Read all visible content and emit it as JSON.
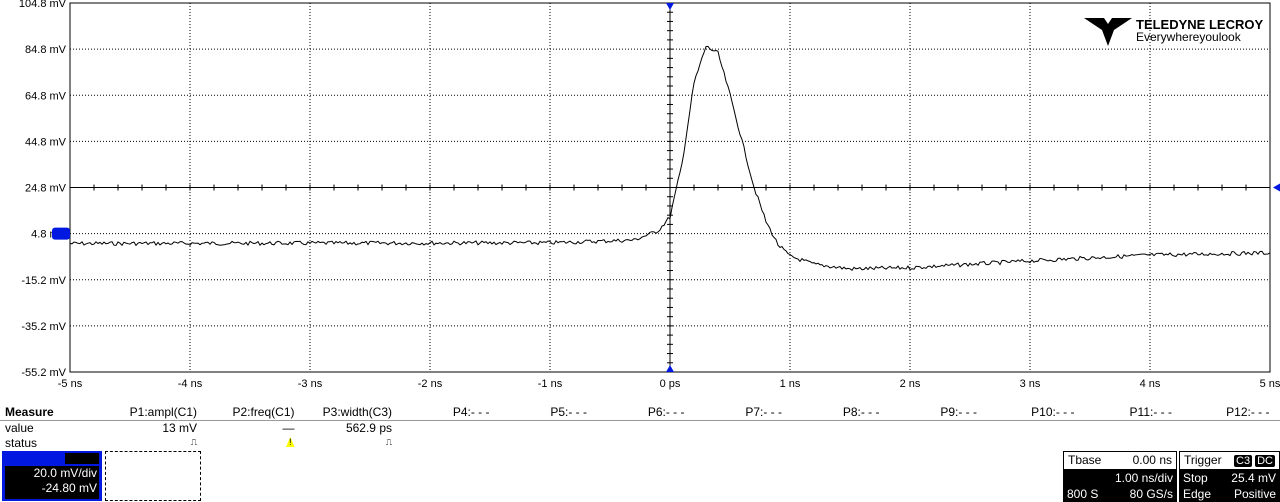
{
  "chart_data": {
    "type": "line",
    "xlabel": "",
    "ylabel": "",
    "xlim": [
      -5,
      5
    ],
    "ylim": [
      -55.2,
      104.8
    ],
    "x_ticks": [
      "-5 ns",
      "-4 ns",
      "-3 ns",
      "-2 ns",
      "-1 ns",
      "0 ps",
      "1 ns",
      "2 ns",
      "3 ns",
      "4 ns",
      "5 ns"
    ],
    "y_ticks": [
      "104.8 mV",
      "84.8 mV",
      "64.8 mV",
      "44.8 mV",
      "24.8 mV",
      "4.8 mV",
      "-15.2 mV",
      "-35.2 mV",
      "-55.2 mV"
    ],
    "grid": true,
    "series": [
      {
        "color": "#000000",
        "x": [
          -5,
          -1,
          -0.3,
          -0.1,
          0,
          0.1,
          0.2,
          0.3,
          0.4,
          0.5,
          0.6,
          0.7,
          0.8,
          0.9,
          1.0,
          1.2,
          1.5,
          2,
          3,
          4,
          5
        ],
        "y": [
          0.5,
          0.8,
          2,
          6,
          12,
          35,
          70,
          86,
          83,
          65,
          45,
          25,
          10,
          0,
          -5,
          -8.5,
          -10.5,
          -10,
          -7,
          -4.5,
          -3.5
        ]
      }
    ],
    "trigger_level_mV": 24.8,
    "ground_marker_color": "#0018e0"
  },
  "logo": {
    "brand": "TELEDYNE LECROY",
    "tagline": "Everywhereyoulook"
  },
  "measure": {
    "title": "Measure",
    "row_value": "value",
    "row_status": "status",
    "params": [
      {
        "name": "P1:ampl(C1)",
        "value": "13 mV",
        "status": "pulse"
      },
      {
        "name": "P2:freq(C1)",
        "value": "—",
        "status": "warning"
      },
      {
        "name": "P3:width(C3)",
        "value": "562.9 ps",
        "status": "pulse"
      },
      {
        "name": "P4:- - -"
      },
      {
        "name": "P5:- - -"
      },
      {
        "name": "P6:- - -"
      },
      {
        "name": "P7:- - -"
      },
      {
        "name": "P8:- - -"
      },
      {
        "name": "P9:- - -"
      },
      {
        "name": "P10:- - -"
      },
      {
        "name": "P11:- - -"
      },
      {
        "name": "P12:- - -"
      }
    ]
  },
  "channel": {
    "scale": "20.0 mV/div",
    "offset": "-24.80 mV",
    "color": "#0018e0"
  },
  "timebase": {
    "label": "Tbase",
    "delay": "0.00 ns",
    "scale": "1.00 ns/div",
    "samples": "800 S",
    "rate": "80 GS/s"
  },
  "trigger": {
    "label": "Trigger",
    "source": "C3",
    "coupling": "DC",
    "mode": "Stop",
    "level": "25.4 mV",
    "type": "Edge",
    "slope": "Positive"
  }
}
